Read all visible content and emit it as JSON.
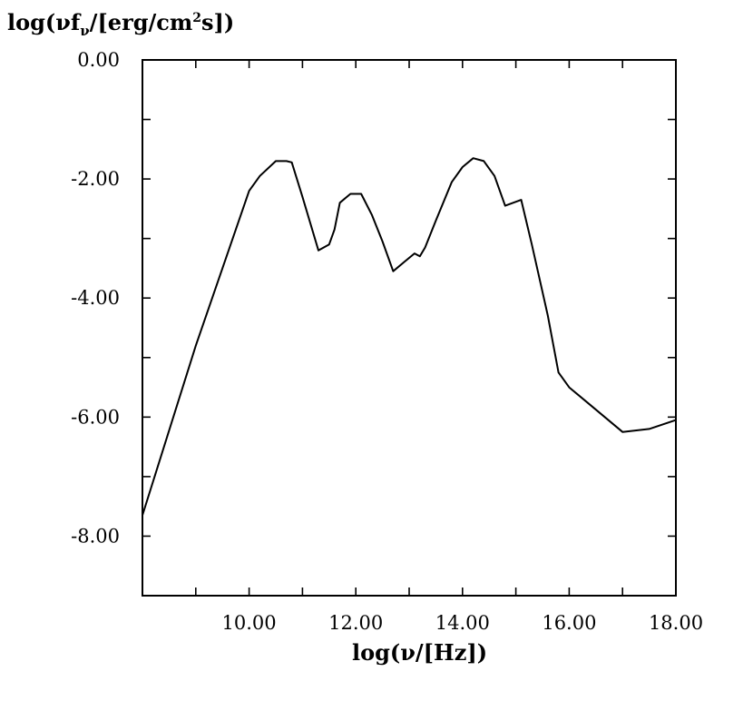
{
  "chart_data": {
    "type": "line",
    "ylabel": {
      "pre": "log(νf",
      "sub": "ν",
      "mid": "/[erg/cm",
      "sup": "2",
      "post": "s])"
    },
    "xlabel": "log(ν/[Hz])",
    "xlim": [
      8.0,
      18.0
    ],
    "ylim": [
      -9.0,
      0.0
    ],
    "xticks_labeled": [
      "10.00",
      "12.00",
      "14.00",
      "16.00",
      "18.00"
    ],
    "xtick_values": [
      10,
      12,
      14,
      16,
      18
    ],
    "yticks_labeled": [
      "0.00",
      "-2.00",
      "-4.00",
      "-6.00",
      "-8.00"
    ],
    "ytick_values": [
      0,
      -2,
      -4,
      -6,
      -8
    ],
    "grid": false,
    "series": [
      {
        "x": [
          8.0,
          9.0,
          10.0,
          10.2,
          10.5,
          10.7,
          10.8,
          11.0,
          11.3,
          11.5,
          11.6,
          11.7,
          11.9,
          12.1,
          12.3,
          12.5,
          12.7,
          12.9,
          13.1,
          13.2,
          13.3,
          13.5,
          13.8,
          14.0,
          14.2,
          14.4,
          14.6,
          14.8,
          15.1,
          15.3,
          15.6,
          15.8,
          16.0,
          16.4,
          17.0,
          17.5,
          18.0
        ],
        "y": [
          -7.65,
          -4.8,
          -2.2,
          -1.95,
          -1.7,
          -1.7,
          -1.72,
          -2.3,
          -3.2,
          -3.1,
          -2.85,
          -2.4,
          -2.25,
          -2.25,
          -2.6,
          -3.05,
          -3.55,
          -3.4,
          -3.25,
          -3.3,
          -3.15,
          -2.7,
          -2.05,
          -1.8,
          -1.65,
          -1.7,
          -1.95,
          -2.45,
          -2.35,
          -3.1,
          -4.3,
          -5.25,
          -5.5,
          -5.8,
          -6.25,
          -6.2,
          -6.05
        ]
      }
    ]
  }
}
